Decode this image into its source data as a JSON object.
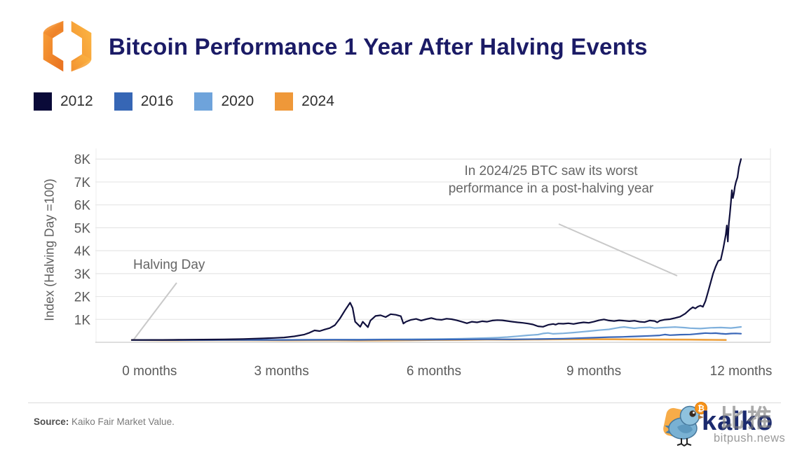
{
  "header": {
    "title": "Bitcoin Performance 1 Year After Halving Events",
    "logo_name": "kaiko-logo"
  },
  "legend": [
    {
      "label": "2012",
      "color": "#0a0a38"
    },
    {
      "label": "2016",
      "color": "#3666b5"
    },
    {
      "label": "2020",
      "color": "#6ea3db"
    },
    {
      "label": "2024",
      "color": "#ef9839"
    }
  ],
  "chart_data": {
    "type": "line",
    "title": "Bitcoin Performance 1 Year After Halving Events",
    "xlabel": "",
    "ylabel": "Index (Halving Day =100)",
    "ylim": [
      0,
      8300
    ],
    "xlim": [
      0,
      12
    ],
    "grid": "horizontal",
    "legend_position": "top-left",
    "yticks": [
      {
        "label": "1K",
        "value": 1000
      },
      {
        "label": "2K",
        "value": 2000
      },
      {
        "label": "3K",
        "value": 3000
      },
      {
        "label": "4K",
        "value": 4000
      },
      {
        "label": "5K",
        "value": 5000
      },
      {
        "label": "6K",
        "value": 6000
      },
      {
        "label": "7K",
        "value": 7000
      },
      {
        "label": "8K",
        "value": 8000
      }
    ],
    "xticks": [
      {
        "label": "0 months",
        "month": 0.35
      },
      {
        "label": "3 months",
        "month": 2.95
      },
      {
        "label": "6 months",
        "month": 5.95
      },
      {
        "label": "9 months",
        "month": 9.1
      },
      {
        "label": "12 months",
        "month": 12
      }
    ],
    "annotations": [
      {
        "text": "Halving Day"
      },
      {
        "text": "In 2024/25 BTC saw its worst performance in a post-halving year"
      }
    ],
    "series": [
      {
        "name": "2024",
        "color": "#eda03d",
        "width": 2.6,
        "points": [
          [
            0,
            100
          ],
          [
            0.5,
            95
          ],
          [
            1,
            90
          ],
          [
            1.5,
            92
          ],
          [
            2,
            95
          ],
          [
            2.5,
            88
          ],
          [
            3,
            85
          ],
          [
            3.5,
            90
          ],
          [
            4,
            88
          ],
          [
            4.5,
            82
          ],
          [
            5,
            85
          ],
          [
            5.5,
            95
          ],
          [
            6,
            105
          ],
          [
            6.5,
            110
          ],
          [
            7,
            120
          ],
          [
            7.5,
            115
          ],
          [
            8,
            125
          ],
          [
            8.5,
            130
          ],
          [
            9,
            135
          ],
          [
            9.5,
            130
          ],
          [
            10,
            125
          ],
          [
            10.5,
            120
          ],
          [
            11,
            115
          ],
          [
            11.3,
            110
          ],
          [
            11.7,
            100
          ]
        ]
      },
      {
        "name": "2020",
        "color": "#7fb0dc",
        "width": 2.2,
        "points": [
          [
            0,
            100
          ],
          [
            0.5,
            98
          ],
          [
            1,
            103
          ],
          [
            1.5,
            100
          ],
          [
            2,
            106
          ],
          [
            2.5,
            104
          ],
          [
            3,
            108
          ],
          [
            3.5,
            112
          ],
          [
            4,
            116
          ],
          [
            4.5,
            120
          ],
          [
            5,
            128
          ],
          [
            5.5,
            135
          ],
          [
            6,
            142
          ],
          [
            6.5,
            155
          ],
          [
            7,
            185
          ],
          [
            7.2,
            205
          ],
          [
            7.4,
            230
          ],
          [
            7.6,
            265
          ],
          [
            7.8,
            305
          ],
          [
            8,
            335
          ],
          [
            8.1,
            385
          ],
          [
            8.2,
            405
          ],
          [
            8.3,
            370
          ],
          [
            8.5,
            390
          ],
          [
            8.7,
            425
          ],
          [
            8.9,
            465
          ],
          [
            9,
            485
          ],
          [
            9.2,
            530
          ],
          [
            9.4,
            565
          ],
          [
            9.5,
            605
          ],
          [
            9.6,
            645
          ],
          [
            9.7,
            670
          ],
          [
            9.8,
            640
          ],
          [
            9.9,
            610
          ],
          [
            10,
            635
          ],
          [
            10.2,
            655
          ],
          [
            10.3,
            620
          ],
          [
            10.5,
            645
          ],
          [
            10.7,
            665
          ],
          [
            10.9,
            640
          ],
          [
            11,
            618
          ],
          [
            11.2,
            600
          ],
          [
            11.4,
            632
          ],
          [
            11.6,
            645
          ],
          [
            11.8,
            622
          ],
          [
            11.9,
            645
          ],
          [
            12,
            672
          ]
        ]
      },
      {
        "name": "2016",
        "color": "#3a67b8",
        "width": 2.2,
        "points": [
          [
            0,
            100
          ],
          [
            0.5,
            102
          ],
          [
            1,
            96
          ],
          [
            1.5,
            98
          ],
          [
            2,
            100
          ],
          [
            2.5,
            104
          ],
          [
            3,
            102
          ],
          [
            3.5,
            106
          ],
          [
            4,
            110
          ],
          [
            4.5,
            108
          ],
          [
            5,
            115
          ],
          [
            5.5,
            112
          ],
          [
            6,
            120
          ],
          [
            6.5,
            125
          ],
          [
            7,
            130
          ],
          [
            7.5,
            128
          ],
          [
            8,
            140
          ],
          [
            8.5,
            160
          ],
          [
            8.7,
            175
          ],
          [
            9,
            195
          ],
          [
            9.2,
            212
          ],
          [
            9.4,
            225
          ],
          [
            9.6,
            232
          ],
          [
            9.8,
            248
          ],
          [
            10,
            262
          ],
          [
            10.2,
            282
          ],
          [
            10.4,
            302
          ],
          [
            10.5,
            338
          ],
          [
            10.6,
            312
          ],
          [
            10.7,
            322
          ],
          [
            10.8,
            332
          ],
          [
            11,
            342
          ],
          [
            11.1,
            362
          ],
          [
            11.2,
            382
          ],
          [
            11.3,
            402
          ],
          [
            11.4,
            390
          ],
          [
            11.5,
            400
          ],
          [
            11.6,
            380
          ],
          [
            11.7,
            365
          ],
          [
            11.8,
            382
          ],
          [
            11.9,
            388
          ],
          [
            12,
            375
          ]
        ]
      },
      {
        "name": "2012",
        "color": "#10103d",
        "width": 2.2,
        "points": [
          [
            0,
            100
          ],
          [
            0.2,
            102
          ],
          [
            0.4,
            105
          ],
          [
            0.6,
            104
          ],
          [
            0.8,
            108
          ],
          [
            1,
            112
          ],
          [
            1.2,
            115
          ],
          [
            1.4,
            118
          ],
          [
            1.6,
            122
          ],
          [
            1.8,
            128
          ],
          [
            2,
            135
          ],
          [
            2.2,
            145
          ],
          [
            2.4,
            160
          ],
          [
            2.6,
            175
          ],
          [
            2.8,
            190
          ],
          [
            3,
            210
          ],
          [
            3.2,
            260
          ],
          [
            3.4,
            340
          ],
          [
            3.5,
            420
          ],
          [
            3.6,
            520
          ],
          [
            3.7,
            490
          ],
          [
            3.8,
            560
          ],
          [
            3.9,
            620
          ],
          [
            4,
            750
          ],
          [
            4.1,
            1040
          ],
          [
            4.2,
            1400
          ],
          [
            4.3,
            1730
          ],
          [
            4.35,
            1500
          ],
          [
            4.4,
            900
          ],
          [
            4.5,
            680
          ],
          [
            4.55,
            900
          ],
          [
            4.6,
            780
          ],
          [
            4.65,
            660
          ],
          [
            4.7,
            950
          ],
          [
            4.8,
            1150
          ],
          [
            4.9,
            1180
          ],
          [
            5,
            1100
          ],
          [
            5.1,
            1230
          ],
          [
            5.2,
            1200
          ],
          [
            5.3,
            1140
          ],
          [
            5.35,
            820
          ],
          [
            5.4,
            900
          ],
          [
            5.5,
            980
          ],
          [
            5.6,
            1020
          ],
          [
            5.7,
            950
          ],
          [
            5.8,
            1010
          ],
          [
            5.9,
            1060
          ],
          [
            6,
            1000
          ],
          [
            6.1,
            980
          ],
          [
            6.2,
            1030
          ],
          [
            6.3,
            1010
          ],
          [
            6.4,
            960
          ],
          [
            6.5,
            900
          ],
          [
            6.6,
            830
          ],
          [
            6.7,
            900
          ],
          [
            6.8,
            870
          ],
          [
            6.9,
            920
          ],
          [
            7,
            900
          ],
          [
            7.1,
            950
          ],
          [
            7.2,
            970
          ],
          [
            7.3,
            960
          ],
          [
            7.4,
            930
          ],
          [
            7.5,
            900
          ],
          [
            7.6,
            870
          ],
          [
            7.7,
            850
          ],
          [
            7.8,
            820
          ],
          [
            7.9,
            780
          ],
          [
            8,
            700
          ],
          [
            8.1,
            680
          ],
          [
            8.2,
            760
          ],
          [
            8.3,
            800
          ],
          [
            8.35,
            770
          ],
          [
            8.4,
            820
          ],
          [
            8.5,
            810
          ],
          [
            8.6,
            830
          ],
          [
            8.7,
            800
          ],
          [
            8.8,
            840
          ],
          [
            8.9,
            870
          ],
          [
            9,
            850
          ],
          [
            9.1,
            900
          ],
          [
            9.2,
            960
          ],
          [
            9.3,
            1000
          ],
          [
            9.4,
            950
          ],
          [
            9.5,
            930
          ],
          [
            9.6,
            960
          ],
          [
            9.7,
            940
          ],
          [
            9.8,
            920
          ],
          [
            9.9,
            940
          ],
          [
            10,
            900
          ],
          [
            10.1,
            880
          ],
          [
            10.2,
            950
          ],
          [
            10.3,
            930
          ],
          [
            10.35,
            870
          ],
          [
            10.4,
            940
          ],
          [
            10.5,
            990
          ],
          [
            10.6,
            1010
          ],
          [
            10.7,
            1060
          ],
          [
            10.8,
            1120
          ],
          [
            10.9,
            1250
          ],
          [
            11,
            1450
          ],
          [
            11.05,
            1530
          ],
          [
            11.1,
            1480
          ],
          [
            11.15,
            1560
          ],
          [
            11.2,
            1600
          ],
          [
            11.25,
            1550
          ],
          [
            11.3,
            1800
          ],
          [
            11.35,
            2200
          ],
          [
            11.4,
            2600
          ],
          [
            11.45,
            3000
          ],
          [
            11.5,
            3300
          ],
          [
            11.55,
            3550
          ],
          [
            11.6,
            3600
          ],
          [
            11.65,
            4100
          ],
          [
            11.7,
            4700
          ],
          [
            11.72,
            5100
          ],
          [
            11.74,
            4400
          ],
          [
            11.76,
            5200
          ],
          [
            11.78,
            5600
          ],
          [
            11.8,
            6100
          ],
          [
            11.82,
            6640
          ],
          [
            11.84,
            6300
          ],
          [
            11.86,
            6500
          ],
          [
            11.88,
            6800
          ],
          [
            11.9,
            7000
          ],
          [
            11.93,
            7200
          ],
          [
            11.96,
            7650
          ],
          [
            12,
            8000
          ]
        ]
      }
    ]
  },
  "footer": {
    "source_label": "Source:",
    "source_text": " Kaiko Fair Market Value.",
    "watermark": {
      "brand": "kaiko",
      "cjk": "比推",
      "site": "bitpush.news",
      "badge": "₿"
    }
  }
}
